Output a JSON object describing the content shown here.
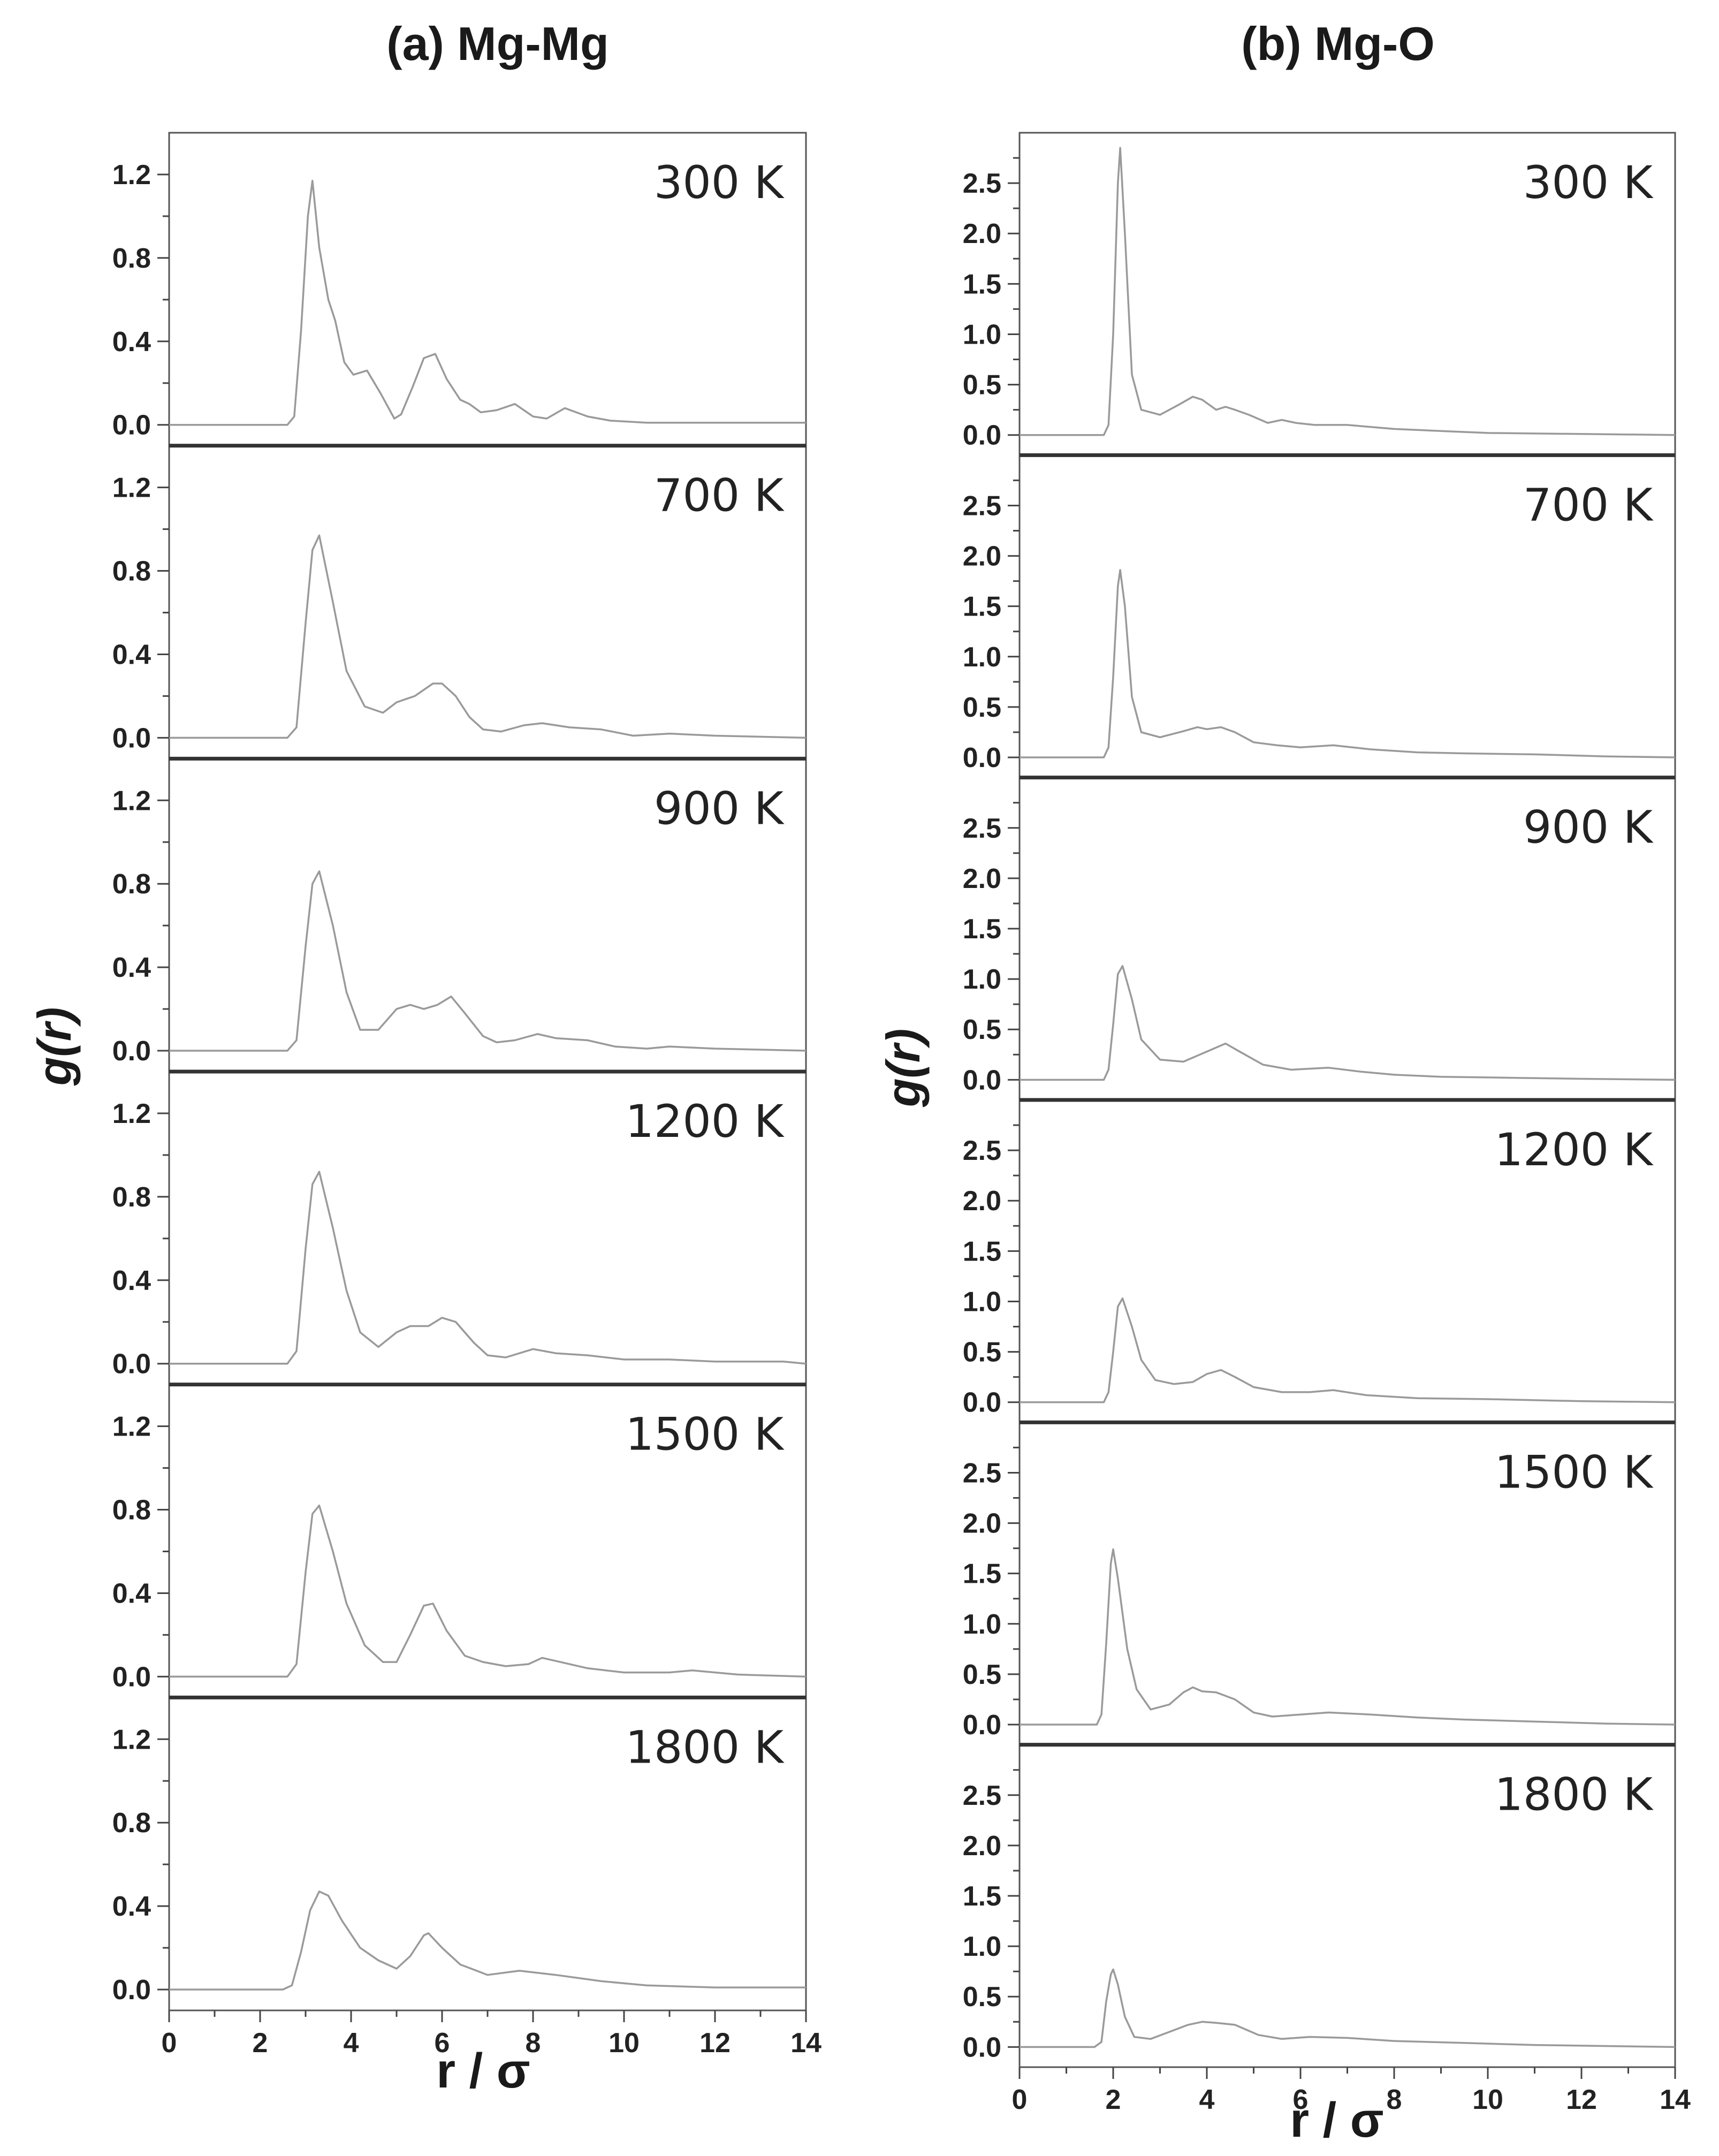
{
  "chart_data": [
    {
      "type": "line",
      "title": "(a) Mg-Mg",
      "xlabel": "r / σ",
      "ylabel": "g(r)",
      "xlim": [
        0,
        14
      ],
      "ylim": [
        -0.1,
        1.4
      ],
      "xticks": [
        "0",
        "2",
        "4",
        "6",
        "8",
        "10",
        "12",
        "14"
      ],
      "yticks": [
        "0.0",
        "0.4",
        "0.8",
        "1.2"
      ],
      "grid": false,
      "series": [
        {
          "name": "300 K",
          "x": [
            0,
            2.6,
            2.75,
            2.9,
            3.05,
            3.15,
            3.3,
            3.5,
            3.65,
            3.85,
            4.05,
            4.35,
            4.65,
            4.95,
            5.1,
            5.35,
            5.6,
            5.85,
            6.1,
            6.4,
            6.6,
            6.85,
            7.2,
            7.6,
            8.0,
            8.3,
            8.7,
            9.2,
            9.7,
            10.5,
            12,
            14
          ],
          "y": [
            0,
            0,
            0.04,
            0.45,
            1.0,
            1.17,
            0.85,
            0.6,
            0.5,
            0.3,
            0.24,
            0.26,
            0.15,
            0.03,
            0.05,
            0.18,
            0.32,
            0.34,
            0.22,
            0.12,
            0.1,
            0.06,
            0.07,
            0.1,
            0.04,
            0.03,
            0.08,
            0.04,
            0.02,
            0.01,
            0.01,
            0.01
          ]
        },
        {
          "name": "700 K",
          "x": [
            0,
            2.6,
            2.8,
            3.0,
            3.15,
            3.3,
            3.6,
            3.9,
            4.3,
            4.7,
            5.0,
            5.4,
            5.8,
            6.0,
            6.3,
            6.6,
            6.9,
            7.3,
            7.8,
            8.2,
            8.8,
            9.5,
            10.2,
            11.0,
            12,
            14
          ],
          "y": [
            0,
            0,
            0.05,
            0.55,
            0.9,
            0.97,
            0.65,
            0.32,
            0.15,
            0.12,
            0.17,
            0.2,
            0.26,
            0.26,
            0.2,
            0.1,
            0.04,
            0.03,
            0.06,
            0.07,
            0.05,
            0.04,
            0.01,
            0.02,
            0.01,
            0.0
          ]
        },
        {
          "name": "900 K",
          "x": [
            0,
            2.6,
            2.8,
            3.0,
            3.15,
            3.3,
            3.6,
            3.9,
            4.2,
            4.6,
            5.0,
            5.3,
            5.6,
            5.9,
            6.2,
            6.5,
            6.9,
            7.2,
            7.6,
            8.1,
            8.5,
            9.2,
            9.8,
            10.5,
            11.0,
            12,
            14
          ],
          "y": [
            0,
            0,
            0.05,
            0.5,
            0.8,
            0.86,
            0.6,
            0.28,
            0.1,
            0.1,
            0.2,
            0.22,
            0.2,
            0.22,
            0.26,
            0.18,
            0.07,
            0.04,
            0.05,
            0.08,
            0.06,
            0.05,
            0.02,
            0.01,
            0.02,
            0.01,
            0.0
          ]
        },
        {
          "name": "1200 K",
          "x": [
            0,
            2.6,
            2.8,
            3.0,
            3.15,
            3.3,
            3.6,
            3.9,
            4.2,
            4.6,
            5.0,
            5.3,
            5.7,
            6.0,
            6.3,
            6.7,
            7.0,
            7.4,
            8.0,
            8.5,
            9.2,
            10.0,
            11.0,
            12.0,
            13.5,
            14
          ],
          "y": [
            0,
            0,
            0.06,
            0.55,
            0.86,
            0.92,
            0.65,
            0.35,
            0.15,
            0.08,
            0.15,
            0.18,
            0.18,
            0.22,
            0.2,
            0.1,
            0.04,
            0.03,
            0.07,
            0.05,
            0.04,
            0.02,
            0.02,
            0.01,
            0.01,
            0.0
          ]
        },
        {
          "name": "1500 K",
          "x": [
            0,
            2.6,
            2.8,
            3.0,
            3.15,
            3.3,
            3.6,
            3.9,
            4.3,
            4.7,
            5.0,
            5.3,
            5.6,
            5.8,
            6.1,
            6.5,
            6.9,
            7.4,
            7.9,
            8.2,
            8.6,
            9.2,
            10.0,
            11.0,
            11.5,
            12.5,
            14
          ],
          "y": [
            0,
            0,
            0.06,
            0.5,
            0.78,
            0.82,
            0.6,
            0.35,
            0.15,
            0.07,
            0.07,
            0.2,
            0.34,
            0.35,
            0.22,
            0.1,
            0.07,
            0.05,
            0.06,
            0.09,
            0.07,
            0.04,
            0.02,
            0.02,
            0.03,
            0.01,
            0.0
          ]
        },
        {
          "name": "1800 K",
          "x": [
            0,
            2.5,
            2.7,
            2.9,
            3.1,
            3.3,
            3.5,
            3.8,
            4.2,
            4.6,
            5.0,
            5.3,
            5.6,
            5.7,
            6.0,
            6.4,
            7.0,
            7.7,
            8.5,
            9.5,
            10.5,
            12,
            14
          ],
          "y": [
            0,
            0,
            0.02,
            0.18,
            0.38,
            0.47,
            0.45,
            0.33,
            0.2,
            0.14,
            0.1,
            0.16,
            0.26,
            0.27,
            0.2,
            0.12,
            0.07,
            0.09,
            0.07,
            0.04,
            0.02,
            0.01,
            0.01
          ]
        }
      ]
    },
    {
      "type": "line",
      "title": "(b) Mg-O",
      "xlabel": "r / σ",
      "ylabel": "g(r)",
      "xlim": [
        0,
        14
      ],
      "ylim": [
        -0.2,
        3.0
      ],
      "xticks": [
        "0",
        "2",
        "4",
        "6",
        "8",
        "10",
        "12",
        "14"
      ],
      "yticks": [
        "0.0",
        "0.5",
        "1.0",
        "1.5",
        "2.0",
        "2.5"
      ],
      "grid": false,
      "series": [
        {
          "name": "300 K",
          "x": [
            0,
            1.8,
            1.9,
            2.0,
            2.1,
            2.15,
            2.25,
            2.4,
            2.6,
            3.0,
            3.4,
            3.7,
            3.9,
            4.2,
            4.4,
            4.6,
            4.9,
            5.3,
            5.6,
            5.9,
            6.3,
            7.0,
            8.0,
            9.0,
            10,
            12,
            14
          ],
          "y": [
            0,
            0,
            0.1,
            1.0,
            2.5,
            2.85,
            2.0,
            0.6,
            0.25,
            0.2,
            0.3,
            0.38,
            0.35,
            0.25,
            0.28,
            0.25,
            0.2,
            0.12,
            0.15,
            0.12,
            0.1,
            0.1,
            0.06,
            0.04,
            0.02,
            0.01,
            0.0
          ]
        },
        {
          "name": "700 K",
          "x": [
            0,
            1.8,
            1.9,
            2.0,
            2.1,
            2.15,
            2.25,
            2.4,
            2.6,
            3.0,
            3.5,
            3.8,
            4.0,
            4.3,
            4.6,
            5.0,
            5.5,
            6.0,
            6.7,
            7.5,
            8.5,
            9.5,
            11,
            12.5,
            14
          ],
          "y": [
            0,
            0,
            0.1,
            0.8,
            1.7,
            1.86,
            1.5,
            0.6,
            0.25,
            0.2,
            0.26,
            0.3,
            0.28,
            0.3,
            0.25,
            0.15,
            0.12,
            0.1,
            0.12,
            0.08,
            0.05,
            0.04,
            0.03,
            0.01,
            0.0
          ]
        },
        {
          "name": "900 K",
          "x": [
            0,
            1.8,
            1.9,
            2.0,
            2.1,
            2.2,
            2.4,
            2.6,
            3.0,
            3.5,
            3.8,
            4.1,
            4.4,
            4.7,
            5.2,
            5.8,
            6.6,
            7.3,
            8.0,
            9.0,
            10.5,
            12,
            14
          ],
          "y": [
            0,
            0,
            0.1,
            0.55,
            1.05,
            1.13,
            0.8,
            0.4,
            0.2,
            0.18,
            0.24,
            0.3,
            0.36,
            0.28,
            0.15,
            0.1,
            0.12,
            0.08,
            0.05,
            0.03,
            0.02,
            0.01,
            0.0
          ]
        },
        {
          "name": "1200 K",
          "x": [
            0,
            1.8,
            1.9,
            2.0,
            2.1,
            2.2,
            2.4,
            2.6,
            2.9,
            3.3,
            3.7,
            4.0,
            4.3,
            4.6,
            5.0,
            5.6,
            6.2,
            6.7,
            7.4,
            8.5,
            10,
            12,
            14
          ],
          "y": [
            0,
            0,
            0.1,
            0.5,
            0.95,
            1.03,
            0.75,
            0.42,
            0.22,
            0.18,
            0.2,
            0.28,
            0.32,
            0.25,
            0.15,
            0.1,
            0.1,
            0.12,
            0.07,
            0.04,
            0.03,
            0.01,
            0.0
          ]
        },
        {
          "name": "1500 K",
          "x": [
            0,
            1.65,
            1.75,
            1.85,
            1.95,
            2.0,
            2.1,
            2.3,
            2.5,
            2.8,
            3.2,
            3.5,
            3.7,
            3.9,
            4.2,
            4.6,
            5.0,
            5.4,
            6.0,
            6.6,
            7.5,
            8.5,
            9.5,
            11,
            12.5,
            14
          ],
          "y": [
            0,
            0,
            0.1,
            0.8,
            1.6,
            1.74,
            1.45,
            0.75,
            0.35,
            0.15,
            0.2,
            0.32,
            0.37,
            0.33,
            0.32,
            0.25,
            0.12,
            0.08,
            0.1,
            0.12,
            0.1,
            0.07,
            0.05,
            0.03,
            0.01,
            0.0
          ]
        },
        {
          "name": "1800 K",
          "x": [
            0,
            1.6,
            1.75,
            1.85,
            1.95,
            2.0,
            2.1,
            2.25,
            2.45,
            2.8,
            3.2,
            3.6,
            3.9,
            4.2,
            4.6,
            5.1,
            5.6,
            6.2,
            7.0,
            8.0,
            9.5,
            11,
            14
          ],
          "y": [
            0,
            0,
            0.05,
            0.45,
            0.72,
            0.77,
            0.62,
            0.3,
            0.1,
            0.08,
            0.15,
            0.22,
            0.25,
            0.24,
            0.22,
            0.12,
            0.08,
            0.1,
            0.09,
            0.06,
            0.04,
            0.02,
            0.0
          ]
        }
      ]
    }
  ]
}
